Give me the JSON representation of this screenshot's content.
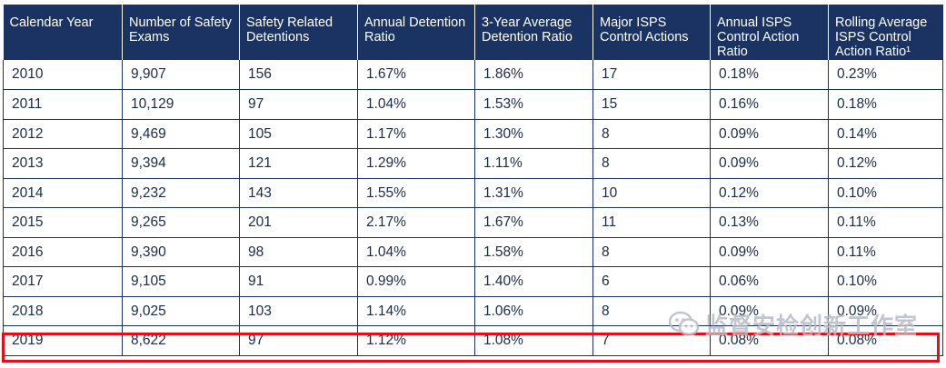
{
  "table": {
    "headers": [
      "Calendar Year",
      "Number of Safety Exams",
      "Safety Related Detentions",
      "Annual Detention Ratio",
      "3-Year Average Detention Ratio",
      "Major ISPS Control Actions",
      "Annual ISPS Control Action Ratio",
      "Rolling Average ISPS Control Action Ratio¹"
    ],
    "rows": [
      [
        "2010",
        "9,907",
        "156",
        "1.67%",
        "1.86%",
        "17",
        "0.18%",
        "0.23%"
      ],
      [
        "2011",
        "10,129",
        "97",
        "1.04%",
        "1.53%",
        "15",
        "0.16%",
        "0.18%"
      ],
      [
        "2012",
        "9,469",
        "105",
        "1.17%",
        "1.30%",
        "8",
        "0.09%",
        "0.14%"
      ],
      [
        "2013",
        "9,394",
        "121",
        "1.29%",
        "1.11%",
        "8",
        "0.09%",
        "0.12%"
      ],
      [
        "2014",
        "9,232",
        "143",
        "1.55%",
        "1.31%",
        "10",
        "0.12%",
        "0.10%"
      ],
      [
        "2015",
        "9,265",
        "201",
        "2.17%",
        "1.67%",
        "11",
        "0.13%",
        "0.11%"
      ],
      [
        "2016",
        "9,390",
        "98",
        "1.04%",
        "1.58%",
        "8",
        "0.09%",
        "0.11%"
      ],
      [
        "2017",
        "9,105",
        "91",
        "0.99%",
        "1.40%",
        "6",
        "0.06%",
        "0.10%"
      ],
      [
        "2018",
        "9,025",
        "103",
        "1.14%",
        "1.06%",
        "8",
        "0.09%",
        "0.09%"
      ],
      [
        "2019",
        "8,622",
        "97",
        "1.12%",
        "1.08%",
        "7",
        "0.08%",
        "0.08%"
      ]
    ],
    "highlighted_row": "2019"
  },
  "watermark": {
    "text": "监督安检创新工作室",
    "icon": "wechat-icon"
  },
  "colors": {
    "header_bg": "#1a3363",
    "header_text": "#ffffff",
    "cell_text": "#1a2a4a",
    "highlight_border": "#e0101a"
  }
}
